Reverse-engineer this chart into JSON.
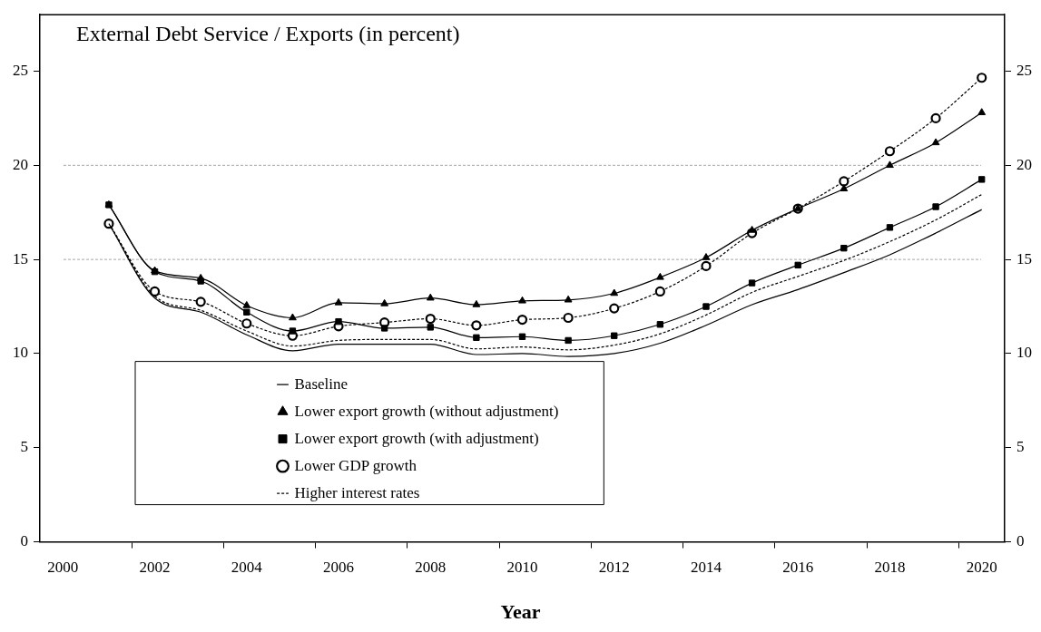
{
  "chart_data": {
    "type": "line",
    "title": "External Debt Service / Exports (in percent)",
    "xlabel": "Year",
    "categories": [
      "2000",
      null,
      "2002",
      null,
      "2004",
      null,
      "2006",
      null,
      "2008",
      null,
      "2010",
      null,
      "2012",
      null,
      "2014",
      null,
      "2016",
      null,
      "2018",
      null,
      "2020"
    ],
    "series": [
      {
        "name": "Baseline",
        "color": "#000000",
        "marker": "none",
        "line_style": "solid",
        "values": [
          null,
          16.9,
          12.95,
          12.2,
          11.0,
          10.15,
          10.5,
          10.5,
          10.5,
          9.95,
          10.0,
          9.85,
          10.0,
          10.55,
          11.5,
          12.6,
          13.4,
          14.3,
          15.25,
          16.4,
          17.65
        ]
      },
      {
        "name": "Lower export growth (without adjustment)",
        "color": "#000000",
        "marker": "triangle",
        "line_style": "solid",
        "values": [
          null,
          17.9,
          14.4,
          14.0,
          12.55,
          11.9,
          12.7,
          12.65,
          12.95,
          12.6,
          12.8,
          12.85,
          13.2,
          14.05,
          15.1,
          16.55,
          17.7,
          18.75,
          20.0,
          21.2,
          22.8
        ]
      },
      {
        "name": "Lower export growth (with adjustment)",
        "color": "#000000",
        "marker": "square",
        "line_style": "solid",
        "values": [
          null,
          17.9,
          14.35,
          13.85,
          12.2,
          11.2,
          11.7,
          11.35,
          11.4,
          10.85,
          10.9,
          10.7,
          10.95,
          11.55,
          12.5,
          13.75,
          14.7,
          15.6,
          16.7,
          17.8,
          19.25
        ]
      },
      {
        "name": "Lower GDP growth",
        "color": "#000000",
        "marker": "circle",
        "line_style": "dashed",
        "values": [
          null,
          16.9,
          13.3,
          12.75,
          11.6,
          10.95,
          11.45,
          11.65,
          11.85,
          11.5,
          11.8,
          11.9,
          12.4,
          13.3,
          14.65,
          16.4,
          17.7,
          19.15,
          20.75,
          22.5,
          24.65
        ]
      },
      {
        "name": "Higher interest rates",
        "color": "#000000",
        "marker": "none",
        "line_style": "dashed",
        "values": [
          null,
          16.9,
          13.05,
          12.3,
          11.2,
          10.4,
          10.7,
          10.75,
          10.75,
          10.25,
          10.35,
          10.2,
          10.45,
          11.05,
          12.05,
          13.25,
          14.1,
          14.95,
          15.95,
          17.1,
          18.45
        ]
      }
    ],
    "ylim": [
      0,
      28
    ],
    "yticks": [
      0,
      5,
      10,
      15,
      20,
      25
    ],
    "y2lim": [
      0,
      28
    ],
    "y2ticks": [
      0,
      5,
      10,
      15,
      20,
      25
    ],
    "ref_lines": [
      {
        "axis": "y",
        "value": 15,
        "color": "#a6a6a6",
        "line_style": "dashed"
      },
      {
        "axis": "y",
        "value": 20,
        "color": "#a6a6a6",
        "line_style": "dashed"
      }
    ],
    "grid": false,
    "legend": "bottom left"
  }
}
